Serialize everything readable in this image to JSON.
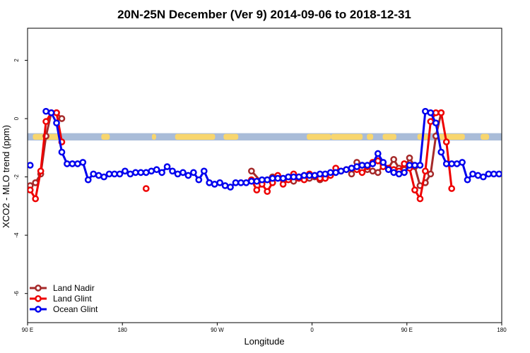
{
  "chart_data": {
    "type": "line",
    "title": "20N-25N December (Ver 9)   2014-09-06 to 2018-12-31",
    "xlabel": "Longitude",
    "ylabel": "XCO2 - MLO trend (ppm)",
    "xlim": [
      90,
      540
    ],
    "ylim": [
      -7,
      3.1
    ],
    "x_ticks": [
      90,
      180,
      270,
      360,
      450,
      540
    ],
    "x_tick_labels": [
      "90 E",
      "180",
      "90 W",
      "0",
      "90 E",
      "180"
    ],
    "y_ticks": [
      2,
      0,
      -2,
      -4,
      -6
    ],
    "y_tick_labels": [
      "2",
      "0",
      "-2",
      "-4",
      "-6"
    ],
    "legend_position": "bottom-left",
    "map_strip": {
      "y_range": [
        -0.75,
        -0.5
      ],
      "ocean_color": "#a9bcd8",
      "land_color": "#f8d66e"
    },
    "series": [
      {
        "name": "Land Nadir",
        "color": "#a52a2a",
        "x": [
          92.5,
          97.5,
          102.5,
          107.5,
          112.5,
          117.5,
          122.5,
          302.5,
          312.5,
          317.5,
          322.5,
          327.5,
          332.5,
          337.5,
          342.5,
          347.5,
          352.5,
          357.5,
          362.5,
          367.5,
          397.5,
          402.5,
          407.5,
          412.5,
          417.5,
          422.5,
          427.5,
          432.5,
          437.5,
          442.5,
          447.5,
          452.5,
          457.5,
          462.5,
          467.5,
          472.5,
          477.5,
          482.5
        ],
        "y": [
          -2.3,
          -2.2,
          -1.9,
          -0.6,
          0.2,
          0.2,
          0.0,
          -1.8,
          -2.2,
          -2.1,
          -2.0,
          -2.0,
          -2.05,
          -2.0,
          -2.15,
          -2.0,
          -1.95,
          -2.05,
          -2.0,
          -2.1,
          -1.9,
          -1.5,
          -1.6,
          -1.75,
          -1.8,
          -1.85,
          -1.6,
          -1.7,
          -1.4,
          -1.7,
          -1.75,
          -1.35,
          -1.65,
          -2.3,
          -2.2,
          -1.9,
          -0.6,
          0.2
        ]
      },
      {
        "name": "Land Glint",
        "color": "#ee0000",
        "x": [
          92.5,
          97.5,
          102.5,
          107.5,
          112.5,
          117.5,
          122.5,
          202.5,
          302.5,
          307.5,
          312.5,
          317.5,
          322.5,
          327.5,
          332.5,
          337.5,
          342.5,
          347.5,
          352.5,
          357.5,
          362.5,
          367.5,
          372.5,
          377.5,
          382.5,
          387.5,
          392.5,
          397.5,
          402.5,
          407.5,
          412.5,
          417.5,
          422.5,
          427.5,
          432.5,
          437.5,
          442.5,
          447.5,
          452.5,
          457.5,
          462.5,
          467.5,
          472.5,
          477.5,
          482.5,
          487.5,
          492.5
        ],
        "y": [
          -2.45,
          -2.75,
          -1.8,
          -0.1,
          0.2,
          0.2,
          -0.8,
          -2.4,
          -2.1,
          -2.45,
          -2.25,
          -2.5,
          -2.2,
          -1.95,
          -2.25,
          -2.1,
          -1.9,
          -2.05,
          -2.1,
          -1.9,
          -1.95,
          -2.05,
          -2.05,
          -1.95,
          -1.7,
          -1.8,
          -1.75,
          -1.7,
          -1.75,
          -1.85,
          -1.65,
          -1.5,
          -1.45,
          -1.65,
          -1.7,
          -1.75,
          -1.8,
          -1.55,
          -1.7,
          -2.45,
          -2.75,
          -1.8,
          -0.1,
          0.2,
          0.2,
          -0.8,
          -2.4
        ]
      },
      {
        "name": "Ocean Glint",
        "color": "#0000ee",
        "x": [
          92.5,
          107.5,
          112.5,
          117.5,
          122.5,
          127.5,
          132.5,
          137.5,
          142.5,
          147.5,
          152.5,
          157.5,
          162.5,
          167.5,
          172.5,
          177.5,
          182.5,
          187.5,
          192.5,
          197.5,
          202.5,
          207.5,
          212.5,
          217.5,
          222.5,
          227.5,
          232.5,
          237.5,
          242.5,
          247.5,
          252.5,
          257.5,
          262.5,
          267.5,
          272.5,
          277.5,
          282.5,
          287.5,
          292.5,
          297.5,
          302.5,
          307.5,
          312.5,
          317.5,
          322.5,
          327.5,
          332.5,
          337.5,
          342.5,
          347.5,
          352.5,
          357.5,
          362.5,
          367.5,
          372.5,
          377.5,
          382.5,
          387.5,
          392.5,
          397.5,
          402.5,
          407.5,
          412.5,
          417.5,
          422.5,
          427.5,
          432.5,
          437.5,
          442.5,
          447.5,
          452.5,
          457.5,
          462.5,
          467.5,
          472.5,
          477.5,
          482.5,
          487.5,
          492.5,
          497.5,
          502.5,
          507.5,
          512.5,
          517.5,
          522.5,
          527.5,
          532.5,
          537.5
        ],
        "y": [
          -1.6,
          0.25,
          0.2,
          -0.15,
          -1.15,
          -1.55,
          -1.55,
          -1.55,
          -1.5,
          -2.1,
          -1.9,
          -1.95,
          -2.0,
          -1.9,
          -1.9,
          -1.9,
          -1.8,
          -1.9,
          -1.85,
          -1.85,
          -1.85,
          -1.8,
          -1.75,
          -1.85,
          -1.65,
          -1.8,
          -1.9,
          -1.85,
          -1.95,
          -1.85,
          -2.1,
          -1.8,
          -2.2,
          -2.25,
          -2.2,
          -2.3,
          -2.35,
          -2.2,
          -2.2,
          -2.2,
          -2.15,
          -2.15,
          -2.1,
          -2.1,
          -2.05,
          -2.05,
          -2.05,
          -2.0,
          -2.0,
          -2.0,
          -1.95,
          -1.95,
          -1.95,
          -1.9,
          -1.9,
          -1.85,
          -1.85,
          -1.8,
          -1.75,
          -1.7,
          -1.65,
          -1.6,
          -1.6,
          -1.55,
          -1.2,
          -1.5,
          -1.75,
          -1.85,
          -1.9,
          -1.85,
          -1.6,
          -1.6,
          -1.6,
          0.25,
          0.2,
          -0.15,
          -1.15,
          -1.55,
          -1.55,
          -1.55,
          -1.5,
          -2.1,
          -1.9,
          -1.95,
          -2.0,
          -1.9,
          -1.9,
          -1.9
        ]
      }
    ]
  }
}
